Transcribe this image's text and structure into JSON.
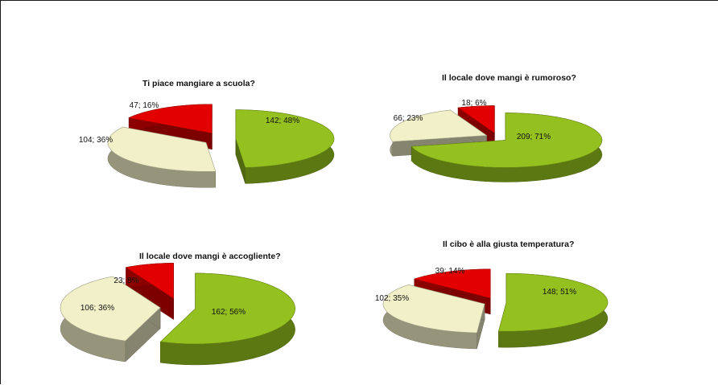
{
  "colors": {
    "yes_green": "#94c11f",
    "no_cream": "#f2f0c8",
    "na_red": "#e30000"
  },
  "chart_data": [
    {
      "type": "pie",
      "title": "Ti piace mangiare a scuola?",
      "slices": [
        {
          "label": "142; 48%",
          "value": 142,
          "percent": 48,
          "color": "#94c11f"
        },
        {
          "label": "104; 36%",
          "value": 104,
          "percent": 36,
          "color": "#f2f0c8"
        },
        {
          "label": "47; 16%",
          "value": 47,
          "percent": 16,
          "color": "#e30000"
        }
      ]
    },
    {
      "type": "pie",
      "title": "Il locale dove mangi è rumoroso?",
      "slices": [
        {
          "label": "209; 71%",
          "value": 209,
          "percent": 71,
          "color": "#94c11f"
        },
        {
          "label": "66; 23%",
          "value": 66,
          "percent": 23,
          "color": "#f2f0c8"
        },
        {
          "label": "18; 6%",
          "value": 18,
          "percent": 6,
          "color": "#e30000"
        }
      ]
    },
    {
      "type": "pie",
      "title": "Il locale dove mangi è accogliente?",
      "slices": [
        {
          "label": "162; 56%",
          "value": 162,
          "percent": 56,
          "color": "#94c11f"
        },
        {
          "label": "106; 36%",
          "value": 106,
          "percent": 36,
          "color": "#f2f0c8"
        },
        {
          "label": "23; 8%",
          "value": 23,
          "percent": 8,
          "color": "#e30000"
        }
      ]
    },
    {
      "type": "pie",
      "title": "Il cibo è alla giusta temperatura?",
      "slices": [
        {
          "label": "148; 51%",
          "value": 148,
          "percent": 51,
          "color": "#94c11f"
        },
        {
          "label": "102; 35%",
          "value": 102,
          "percent": 35,
          "color": "#f2f0c8"
        },
        {
          "label": "39; 14%",
          "value": 39,
          "percent": 14,
          "color": "#e30000"
        }
      ]
    }
  ]
}
